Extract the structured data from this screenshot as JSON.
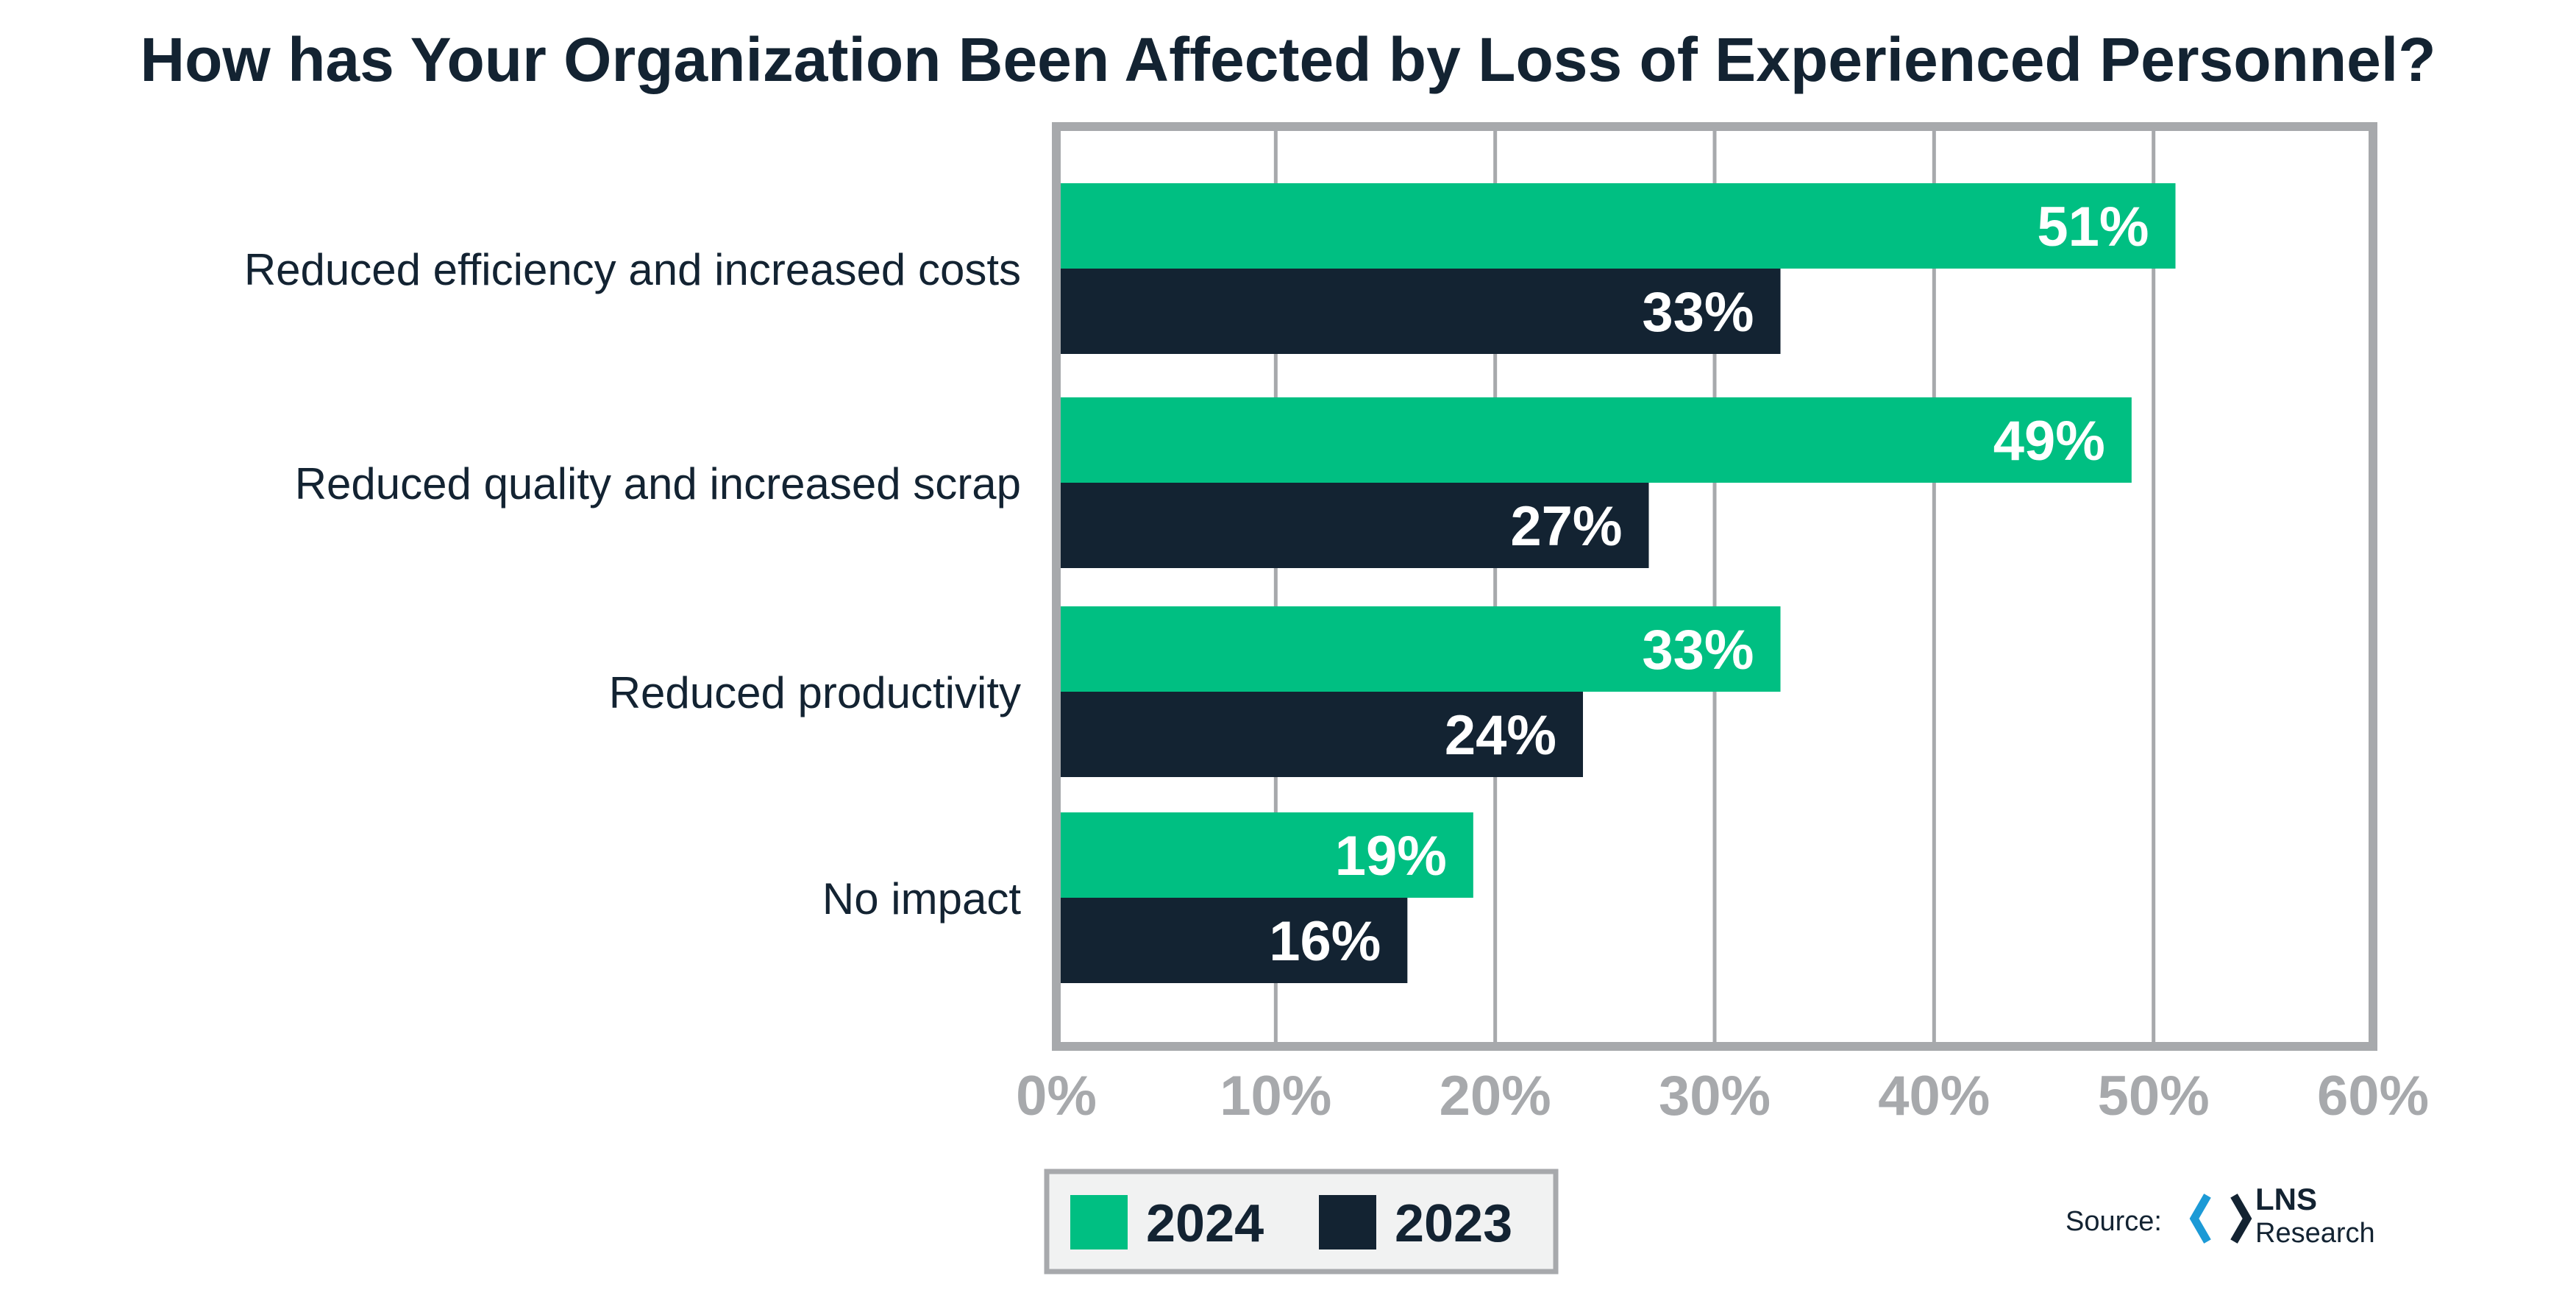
{
  "chart_data": {
    "type": "bar",
    "orientation": "horizontal",
    "title": "How has Your Organization Been Affected by Loss of Experienced Personnel?",
    "categories": [
      "Reduced efficiency and increased costs",
      "Reduced quality and increased scrap",
      "Reduced productivity",
      "No impact"
    ],
    "series": [
      {
        "name": "2024",
        "values": [
          51,
          49,
          33,
          19
        ],
        "labels": [
          "51%",
          "49%",
          "33%",
          "19%"
        ]
      },
      {
        "name": "2023",
        "values": [
          33,
          27,
          24,
          16
        ],
        "labels": [
          "33%",
          "27%",
          "24%",
          "16%"
        ]
      }
    ],
    "xlim": [
      0,
      60
    ],
    "xticks": [
      0,
      10,
      20,
      30,
      40,
      50,
      60
    ],
    "xtick_labels": [
      "0%",
      "10%",
      "20%",
      "30%",
      "40%",
      "50%",
      "60%"
    ],
    "grid": true,
    "legend_position": "bottom-left"
  },
  "colors": {
    "series_2024": "#00BF82",
    "series_2023": "#132332",
    "title": "#132332",
    "category_text": "#132332",
    "axis_frame": "#A7A9AC",
    "gridline": "#A7A9AC",
    "tick_text": "#A7A9AC",
    "legend_border": "#A7A9AC",
    "legend_bg": "#F1F2F2",
    "logo_blue": "#1C9AD6",
    "logo_dark": "#132332"
  },
  "source": {
    "label": "Source:",
    "brand_line1": "LNS",
    "brand_line2": "Research",
    "logo_icon": "lns-hexagon-logo"
  }
}
